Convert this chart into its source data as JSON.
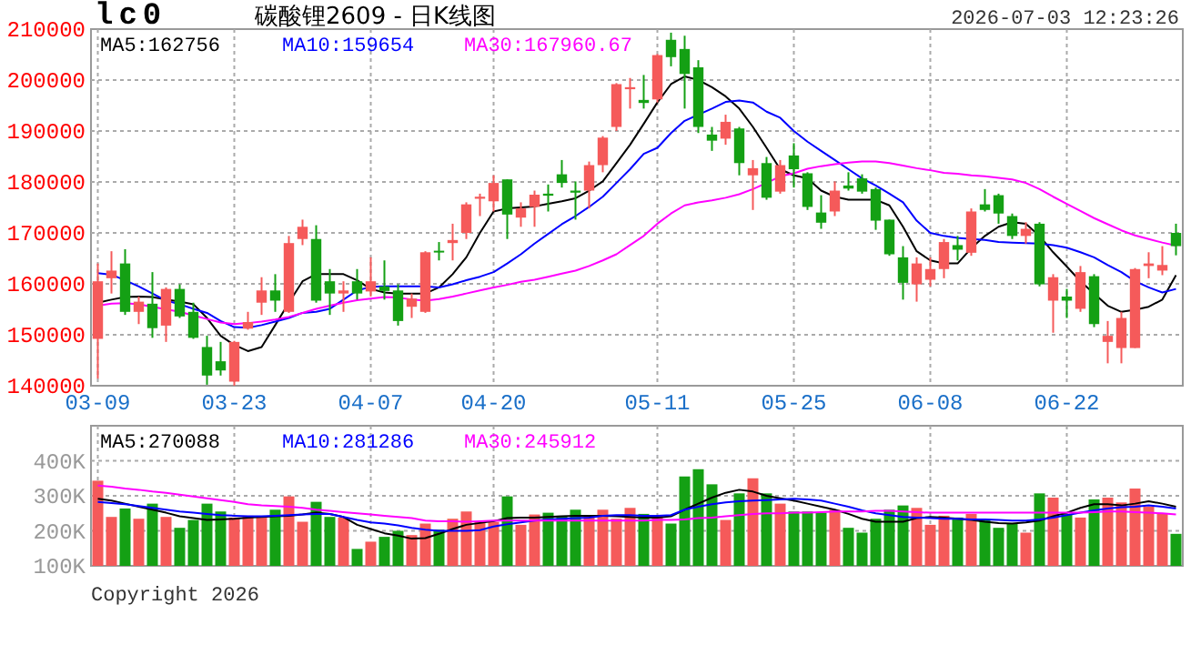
{
  "chart_data": [
    {
      "type": "candlestick",
      "title": "碳酸锂2609 - 日K线图",
      "subtitle": "lc0",
      "annotations": [
        "2026-07-03 12:23:26"
      ],
      "categories": [
        "03-09",
        null,
        null,
        null,
        null,
        null,
        null,
        null,
        null,
        null,
        "03-23",
        null,
        null,
        null,
        null,
        null,
        null,
        null,
        null,
        null,
        "04-07",
        null,
        null,
        null,
        null,
        null,
        null,
        null,
        null,
        "04-20",
        null,
        null,
        null,
        null,
        null,
        null,
        null,
        null,
        null,
        null,
        null,
        "05-11",
        null,
        null,
        null,
        null,
        null,
        null,
        null,
        null,
        null,
        "05-25",
        null,
        null,
        null,
        null,
        null,
        null,
        null,
        null,
        null,
        "06-08",
        null,
        null,
        null,
        null,
        null,
        null,
        null,
        null,
        null,
        "06-22",
        null,
        null,
        null,
        null,
        null,
        null,
        null,
        null
      ],
      "ylim": [
        140000,
        210000
      ],
      "yticks": [
        140000,
        150000,
        160000,
        170000,
        180000,
        190000,
        200000,
        210000
      ],
      "grid": true,
      "legend": "top left",
      "ohlc": [
        [
          149200,
          164000,
          141400,
          160500
        ],
        [
          161100,
          166400,
          158100,
          162600
        ],
        [
          164000,
          166800,
          153900,
          154500
        ],
        [
          154500,
          157500,
          152100,
          156500
        ],
        [
          156100,
          162300,
          149400,
          151300
        ],
        [
          151800,
          159300,
          148600,
          159000
        ],
        [
          159000,
          159900,
          153300,
          153600
        ],
        [
          154500,
          156300,
          149200,
          149400
        ],
        [
          147600,
          149800,
          140200,
          142000
        ],
        [
          144800,
          148600,
          142000,
          143000
        ],
        [
          140800,
          148800,
          140000,
          148600
        ],
        [
          151200,
          154500,
          151000,
          152500
        ],
        [
          156300,
          161300,
          153900,
          158700
        ],
        [
          158700,
          161900,
          154500,
          156700
        ],
        [
          154500,
          169400,
          154300,
          168000
        ],
        [
          168800,
          172600,
          167600,
          171200
        ],
        [
          168800,
          171500,
          156300,
          156700
        ],
        [
          160500,
          162900,
          153900,
          158100
        ],
        [
          158100,
          160500,
          154500,
          158700
        ],
        [
          160500,
          162900,
          156900,
          158100
        ],
        [
          158500,
          165200,
          157500,
          160500
        ],
        [
          159500,
          164600,
          156900,
          158600
        ],
        [
          158700,
          159900,
          151800,
          152700
        ],
        [
          155500,
          158100,
          153300,
          157100
        ],
        [
          154500,
          166400,
          154300,
          166200
        ],
        [
          166500,
          168200,
          164600,
          166200
        ],
        [
          168000,
          171800,
          164600,
          168600
        ],
        [
          170000,
          176000,
          168800,
          175600
        ],
        [
          176700,
          177700,
          173300,
          177100
        ],
        [
          176200,
          181300,
          174200,
          179800
        ],
        [
          180500,
          180500,
          168800,
          173600
        ],
        [
          173000,
          176000,
          171200,
          174800
        ],
        [
          175100,
          178300,
          171200,
          177500
        ],
        [
          177700,
          179500,
          174200,
          177300
        ],
        [
          181500,
          184300,
          178900,
          179800
        ],
        [
          178300,
          180100,
          172600,
          177900
        ],
        [
          178300,
          184000,
          174800,
          183300
        ],
        [
          183300,
          189000,
          181900,
          188700
        ],
        [
          190800,
          199400,
          190000,
          199200
        ],
        [
          198200,
          200400,
          194400,
          198600
        ],
        [
          196100,
          201000,
          194400,
          195500
        ],
        [
          196200,
          205100,
          195600,
          204900
        ],
        [
          207900,
          209300,
          202700,
          204500
        ],
        [
          206100,
          208700,
          194400,
          201200
        ],
        [
          202500,
          203900,
          189600,
          190800
        ],
        [
          189300,
          190800,
          186100,
          188100
        ],
        [
          188500,
          193200,
          187300,
          191800
        ],
        [
          190500,
          190800,
          181300,
          183700
        ],
        [
          181300,
          184300,
          174500,
          182700
        ],
        [
          183700,
          184900,
          176500,
          176900
        ],
        [
          178100,
          184300,
          177700,
          183300
        ],
        [
          185200,
          187600,
          178900,
          182500
        ],
        [
          181700,
          181900,
          174500,
          175100
        ],
        [
          174000,
          177400,
          170800,
          172000
        ],
        [
          174200,
          180100,
          173300,
          178300
        ],
        [
          179300,
          181900,
          178300,
          178700
        ],
        [
          180700,
          181500,
          177700,
          178100
        ],
        [
          178600,
          178900,
          170600,
          172400
        ],
        [
          172600,
          172600,
          165500,
          165800
        ],
        [
          165200,
          167400,
          156900,
          160200
        ],
        [
          159900,
          165200,
          156500,
          164000
        ],
        [
          160800,
          165200,
          159500,
          162900
        ],
        [
          162900,
          168800,
          161100,
          168200
        ],
        [
          167600,
          169400,
          164600,
          166700
        ],
        [
          166100,
          174800,
          165500,
          174200
        ],
        [
          175600,
          178600,
          174200,
          174500
        ],
        [
          177400,
          177700,
          171800,
          173800
        ],
        [
          173300,
          173800,
          168800,
          169400
        ],
        [
          169400,
          172100,
          167900,
          170800
        ],
        [
          171800,
          172100,
          159500,
          159900
        ],
        [
          156700,
          161900,
          150400,
          161300
        ],
        [
          157500,
          159000,
          153300,
          156700
        ],
        [
          155100,
          163500,
          154500,
          162300
        ],
        [
          161500,
          161900,
          151500,
          152100
        ],
        [
          148600,
          152700,
          144400,
          149800
        ],
        [
          147400,
          154500,
          144400,
          153300
        ],
        [
          147400,
          163100,
          147400,
          162900
        ],
        [
          163500,
          166200,
          161100,
          164000
        ],
        [
          162600,
          167400,
          161700,
          163700
        ],
        [
          170000,
          171800,
          165600,
          167400
        ]
      ],
      "colors": [
        "#f55a5a",
        "#f55a5a",
        "#14a014",
        "#f55a5a",
        "#14a014",
        "#f55a5a",
        "#14a014",
        "#14a014",
        "#14a014",
        "#14a014",
        "#f55a5a",
        "#f55a5a",
        "#f55a5a",
        "#14a014",
        "#f55a5a",
        "#f55a5a",
        "#14a014",
        "#14a014",
        "#f55a5a",
        "#14a014",
        "#f55a5a",
        "#14a014",
        "#14a014",
        "#f55a5a",
        "#f55a5a",
        "#14a014",
        "#f55a5a",
        "#f55a5a",
        "#f55a5a",
        "#f55a5a",
        "#14a014",
        "#f55a5a",
        "#f55a5a",
        "#14a014",
        "#14a014",
        "#14a014",
        "#f55a5a",
        "#f55a5a",
        "#f55a5a",
        "#f55a5a",
        "#14a014",
        "#f55a5a",
        "#14a014",
        "#14a014",
        "#14a014",
        "#14a014",
        "#f55a5a",
        "#14a014",
        "#f55a5a",
        "#14a014",
        "#f55a5a",
        "#14a014",
        "#14a014",
        "#14a014",
        "#f55a5a",
        "#14a014",
        "#14a014",
        "#14a014",
        "#14a014",
        "#14a014",
        "#f55a5a",
        "#f55a5a",
        "#f55a5a",
        "#14a014",
        "#f55a5a",
        "#14a014",
        "#14a014",
        "#14a014",
        "#f55a5a",
        "#14a014",
        "#f55a5a",
        "#14a014",
        "#f55a5a",
        "#14a014",
        "#f55a5a",
        "#f55a5a",
        "#f55a5a",
        "#f55a5a",
        "#f55a5a",
        "#14a014"
      ],
      "series": [
        {
          "type": "line",
          "name": "MA5:162756",
          "color": "#000000",
          "values": [
            156300,
            156900,
            157400,
            157500,
            157400,
            156900,
            156500,
            156000,
            153300,
            149800,
            148000,
            146800,
            147600,
            151900,
            156300,
            160500,
            161900,
            161900,
            161900,
            160700,
            159000,
            158300,
            158100,
            158100,
            158100,
            159300,
            161900,
            165200,
            170000,
            174200,
            174800,
            175000,
            175200,
            175700,
            176200,
            176800,
            178300,
            180100,
            183700,
            187300,
            191400,
            195600,
            199200,
            200700,
            200000,
            198600,
            196800,
            194400,
            190800,
            186700,
            182500,
            181300,
            180700,
            178300,
            177100,
            176500,
            176500,
            176500,
            175400,
            171200,
            166400,
            164600,
            164000,
            164000,
            167000,
            169400,
            171200,
            172100,
            171800,
            169400,
            166200,
            163400,
            160500,
            158100,
            155700,
            154500,
            154900,
            155500,
            156900,
            161700
          ]
        },
        {
          "type": "line",
          "name": "MA10:159654",
          "color": "#0000ff",
          "values": [
            162100,
            161800,
            160700,
            159500,
            158100,
            156700,
            156000,
            155100,
            154300,
            152700,
            151500,
            151400,
            151900,
            152600,
            153300,
            154300,
            154500,
            155100,
            156900,
            158700,
            159400,
            159500,
            159500,
            159500,
            159500,
            159300,
            159900,
            160700,
            161400,
            162300,
            164000,
            165800,
            167900,
            169800,
            171700,
            173300,
            175100,
            177100,
            179800,
            182500,
            185500,
            186700,
            189600,
            192000,
            193200,
            194400,
            195700,
            196000,
            195600,
            193800,
            192600,
            190000,
            187900,
            186100,
            184300,
            182500,
            180700,
            179300,
            177700,
            176000,
            172400,
            170000,
            169400,
            169000,
            168800,
            168600,
            168200,
            168100,
            168000,
            167900,
            167600,
            167100,
            166200,
            165200,
            163700,
            162300,
            160500,
            159300,
            158300,
            159000
          ]
        },
        {
          "type": "line",
          "name": "MA30:167960.67",
          "color": "#ff00ff",
          "values": [
            155700,
            156100,
            156200,
            156000,
            155500,
            155000,
            154500,
            153800,
            153100,
            152400,
            152100,
            152300,
            152600,
            153000,
            153500,
            154300,
            155100,
            155700,
            156300,
            156800,
            157100,
            157400,
            157300,
            156900,
            156700,
            157000,
            157500,
            158100,
            158700,
            159300,
            159800,
            160400,
            160800,
            161400,
            162000,
            162600,
            163500,
            164600,
            165800,
            167600,
            169400,
            171800,
            173800,
            175400,
            176000,
            176400,
            176900,
            177600,
            178600,
            179800,
            181100,
            181700,
            182600,
            183100,
            183500,
            183800,
            184000,
            184000,
            183700,
            183200,
            182700,
            182300,
            181800,
            181600,
            181300,
            181100,
            180800,
            180500,
            179800,
            178600,
            177100,
            175700,
            174300,
            172900,
            171700,
            170500,
            169500,
            168800,
            168100,
            167500
          ]
        }
      ]
    },
    {
      "type": "bar",
      "annotations": [
        "Copyright 2026"
      ],
      "categories": [
        null,
        null,
        null,
        null,
        null,
        null,
        null,
        null,
        null,
        null,
        null,
        null,
        null,
        null,
        null,
        null,
        null,
        null,
        null,
        null,
        null,
        null,
        null,
        null,
        null,
        null,
        null,
        null,
        null,
        null,
        null,
        null,
        null,
        null,
        null,
        null,
        null,
        null,
        null,
        null,
        null,
        null,
        null,
        null,
        null,
        null,
        null,
        null,
        null,
        null,
        null,
        null,
        null,
        null,
        null,
        null,
        null,
        null,
        null,
        null,
        null,
        null,
        null,
        null,
        null,
        null,
        null,
        null,
        null,
        null,
        null,
        null,
        null,
        null,
        null,
        null,
        null,
        null,
        null,
        null
      ],
      "tick_labels": "y",
      "ylim": [
        100000,
        500000
      ],
      "yticks": [
        {
          "value": 100000,
          "label": "100K"
        },
        {
          "value": 200000,
          "label": "200K"
        },
        {
          "value": 300000,
          "label": "300K"
        },
        {
          "value": 400000,
          "label": "400K"
        }
      ],
      "grid": true,
      "legend": "top left",
      "series": [
        {
          "values": [
            343100,
            239700,
            263800,
            234500,
            277600,
            239700,
            208600,
            231000,
            277600,
            255200,
            237900,
            243100,
            239700,
            260300,
            298300,
            225900,
            282800,
            239700,
            237900,
            148300,
            169000,
            182800,
            200000,
            187900,
            220700,
            203400,
            234500,
            255200,
            225900,
            225900,
            298300,
            217200,
            246600,
            251700,
            243100,
            260300,
            243100,
            260300,
            234500,
            265500,
            248300,
            243100,
            220700,
            355200,
            375900,
            332800,
            231000,
            306900,
            350000,
            306900,
            277600,
            255200,
            255200,
            251700,
            260300,
            208600,
            194800,
            234500,
            260300,
            272400,
            265500,
            217200,
            243100,
            237900,
            248300,
            231000,
            208600,
            220700,
            194800,
            306900,
            294800,
            248300,
            237900,
            289700,
            294800,
            281000,
            320700,
            269000,
            248300,
            191400
          ],
          "colors": [
            "#f55a5a",
            "#f55a5a",
            "#14a014",
            "#f55a5a",
            "#14a014",
            "#f55a5a",
            "#14a014",
            "#14a014",
            "#14a014",
            "#14a014",
            "#f55a5a",
            "#f55a5a",
            "#f55a5a",
            "#14a014",
            "#f55a5a",
            "#f55a5a",
            "#14a014",
            "#14a014",
            "#f55a5a",
            "#14a014",
            "#f55a5a",
            "#14a014",
            "#14a014",
            "#f55a5a",
            "#f55a5a",
            "#14a014",
            "#f55a5a",
            "#f55a5a",
            "#f55a5a",
            "#f55a5a",
            "#14a014",
            "#f55a5a",
            "#f55a5a",
            "#14a014",
            "#14a014",
            "#14a014",
            "#f55a5a",
            "#f55a5a",
            "#f55a5a",
            "#f55a5a",
            "#14a014",
            "#f55a5a",
            "#14a014",
            "#14a014",
            "#14a014",
            "#14a014",
            "#f55a5a",
            "#14a014",
            "#f55a5a",
            "#14a014",
            "#f55a5a",
            "#14a014",
            "#14a014",
            "#14a014",
            "#f55a5a",
            "#14a014",
            "#14a014",
            "#14a014",
            "#14a014",
            "#14a014",
            "#f55a5a",
            "#f55a5a",
            "#f55a5a",
            "#14a014",
            "#f55a5a",
            "#14a014",
            "#14a014",
            "#14a014",
            "#f55a5a",
            "#14a014",
            "#f55a5a",
            "#14a014",
            "#f55a5a",
            "#14a014",
            "#f55a5a",
            "#f55a5a",
            "#f55a5a",
            "#f55a5a",
            "#f55a5a",
            "#14a014"
          ]
        },
        {
          "type": "line",
          "name": "MA5:270088",
          "color": "#000000",
          "values": [
            291400,
            286200,
            277600,
            269000,
            260300,
            251700,
            241400,
            236200,
            231000,
            232700,
            234500,
            237900,
            239600,
            241400,
            243100,
            246500,
            251700,
            248300,
            239600,
            217200,
            205200,
            193100,
            186200,
            177600,
            179300,
            191400,
            205200,
            217200,
            222400,
            227600,
            236200,
            237900,
            237900,
            239600,
            241400,
            243100,
            243100,
            243100,
            241400,
            239600,
            237900,
            237900,
            241400,
            260300,
            277600,
            294800,
            308600,
            317200,
            312100,
            300000,
            293100,
            286200,
            277600,
            269000,
            260300,
            248300,
            234500,
            225900,
            225900,
            225900,
            236200,
            239600,
            237900,
            234500,
            231000,
            225900,
            222400,
            220700,
            224100,
            229300,
            241400,
            251700,
            265500,
            275800,
            275800,
            272400,
            277600,
            284500,
            277600,
            269000
          ]
        },
        {
          "type": "line",
          "name": "MA10:281286",
          "color": "#0000ff",
          "values": [
            282700,
            279300,
            275800,
            270700,
            265500,
            260300,
            255200,
            251700,
            248300,
            244800,
            243100,
            241400,
            241400,
            243100,
            244800,
            246500,
            248300,
            248300,
            239600,
            231000,
            224100,
            220700,
            215500,
            208600,
            203400,
            200000,
            200000,
            200000,
            201700,
            212100,
            219000,
            224100,
            229300,
            232700,
            234500,
            236200,
            237900,
            243100,
            244800,
            244800,
            243100,
            243100,
            244800,
            260300,
            269000,
            275800,
            281000,
            284500,
            286200,
            287900,
            289600,
            291400,
            289600,
            286200,
            277600,
            269000,
            258600,
            250000,
            244800,
            239600,
            237900,
            236200,
            234500,
            234500,
            232700,
            232700,
            231000,
            229300,
            229300,
            232700,
            237900,
            244800,
            251700,
            258600,
            263800,
            267200,
            269000,
            272400,
            269000,
            263800
          ]
        },
        {
          "type": "line",
          "name": "MA30:245912",
          "color": "#ff00ff",
          "values": [
            329300,
            325800,
            320700,
            317200,
            312100,
            308600,
            303400,
            298300,
            293100,
            287900,
            282700,
            275800,
            272400,
            270700,
            269000,
            265500,
            260300,
            256900,
            253400,
            250000,
            246500,
            243100,
            239600,
            236200,
            229300,
            227600,
            227600,
            225900,
            227600,
            229300,
            229300,
            229300,
            229300,
            229300,
            229300,
            229300,
            229300,
            229300,
            229300,
            229300,
            229300,
            231000,
            231000,
            232700,
            236200,
            237900,
            241400,
            244800,
            248300,
            250000,
            250000,
            251700,
            251700,
            253400,
            255200,
            255200,
            255200,
            256900,
            256900,
            255200,
            253400,
            251700,
            251700,
            251700,
            251700,
            251700,
            251700,
            251700,
            251700,
            251700,
            251700,
            251700,
            251700,
            253400,
            255200,
            255200,
            253400,
            251700,
            250000,
            246500
          ]
        }
      ]
    }
  ]
}
